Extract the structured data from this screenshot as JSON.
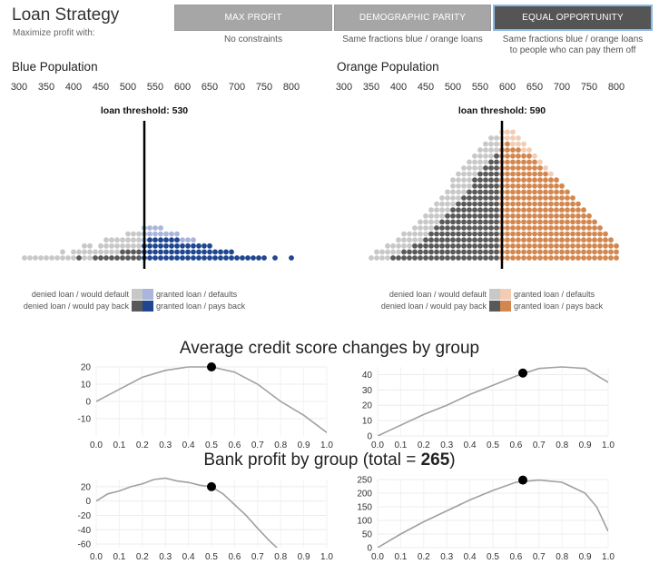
{
  "header": {
    "title": "Loan Strategy",
    "subtitle": "Maximize profit with:"
  },
  "strategies": [
    {
      "label": "MAX PROFIT",
      "description": "No constraints",
      "active": false
    },
    {
      "label": "DEMOGRAPHIC PARITY",
      "description": "Same fractions blue / orange loans",
      "active": false
    },
    {
      "label": "EQUAL OPPORTUNITY",
      "description": "Same fractions blue / orange loans\nto people who can pay them off",
      "active": true
    }
  ],
  "colors": {
    "blue_granted": "#1f4690",
    "blue_granted_default": "#a9b6da",
    "orange_granted": "#d3874e",
    "orange_granted_default": "#f2cdb3",
    "denied_default": "#c8c8c8",
    "denied_payback": "#595959",
    "line": "#a0a0a0"
  },
  "populations": [
    {
      "name": "Blue Population",
      "threshold_label": "loan threshold: 530",
      "threshold": 530,
      "score_ticks": [
        "300",
        "350",
        "400",
        "450",
        "500",
        "550",
        "600",
        "650",
        "700",
        "750",
        "800"
      ],
      "legend": {
        "denied_default": "denied loan / would default",
        "denied_payback": "denied loan / would pay back",
        "granted_default": "granted loan / defaults",
        "granted_payback": "granted loan / pays back"
      },
      "distribution": {
        "scores": [
          310,
          320,
          330,
          340,
          350,
          360,
          370,
          380,
          390,
          400,
          410,
          420,
          430,
          440,
          450,
          460,
          470,
          480,
          490,
          500,
          510,
          520,
          530,
          540,
          550,
          560,
          570,
          580,
          590,
          600,
          610,
          620,
          630,
          640,
          650,
          660,
          670,
          680,
          690,
          700,
          710,
          720,
          730,
          740,
          750,
          760,
          770,
          780,
          790,
          800
        ],
        "total": [
          1,
          1,
          1,
          1,
          1,
          1,
          1,
          2,
          1,
          2,
          2,
          3,
          3,
          2,
          3,
          4,
          4,
          4,
          4,
          5,
          5,
          5,
          6,
          6,
          6,
          6,
          5,
          5,
          5,
          4,
          4,
          4,
          3,
          3,
          3,
          2,
          2,
          2,
          2,
          1,
          1,
          1,
          1,
          1,
          1,
          0,
          1,
          0,
          0,
          1
        ],
        "would_pay_back": [
          0,
          0,
          0,
          0,
          0,
          0,
          0,
          0,
          0,
          0,
          1,
          0,
          0,
          1,
          1,
          1,
          1,
          1,
          2,
          2,
          2,
          2,
          3,
          4,
          4,
          4,
          4,
          4,
          4,
          3,
          3,
          3,
          3,
          3,
          3,
          2,
          2,
          2,
          2,
          1,
          1,
          1,
          1,
          1,
          1,
          0,
          1,
          0,
          0,
          1
        ]
      }
    },
    {
      "name": "Orange Population",
      "threshold_label": "loan threshold: 590",
      "threshold": 590,
      "score_ticks": [
        "300",
        "350",
        "400",
        "450",
        "500",
        "550",
        "600",
        "650",
        "700",
        "750",
        "800"
      ],
      "legend": {
        "denied_default": "denied loan / would default",
        "denied_payback": "denied loan / would pay back",
        "granted_default": "granted loan / defaults",
        "granted_payback": "granted loan / pays back"
      },
      "distribution": {
        "scores": [
          350,
          360,
          370,
          380,
          390,
          400,
          410,
          420,
          430,
          440,
          450,
          460,
          470,
          480,
          490,
          500,
          510,
          520,
          530,
          540,
          550,
          560,
          570,
          580,
          590,
          600,
          610,
          620,
          630,
          640,
          650,
          660,
          670,
          680,
          690,
          700,
          710,
          720,
          730,
          740,
          750,
          760,
          770,
          780,
          790,
          800
        ],
        "total": [
          1,
          2,
          2,
          3,
          3,
          4,
          5,
          5,
          6,
          7,
          8,
          9,
          10,
          11,
          12,
          14,
          15,
          16,
          17,
          18,
          19,
          20,
          21,
          21,
          22,
          22,
          22,
          21,
          20,
          19,
          18,
          17,
          16,
          15,
          14,
          13,
          12,
          11,
          10,
          9,
          8,
          7,
          6,
          5,
          4,
          3
        ],
        "would_pay_back": [
          0,
          0,
          0,
          0,
          1,
          1,
          2,
          2,
          3,
          3,
          4,
          5,
          6,
          7,
          8,
          9,
          10,
          11,
          12,
          14,
          15,
          16,
          17,
          18,
          19,
          20,
          19,
          19,
          18,
          18,
          17,
          16,
          15,
          14,
          14,
          13,
          12,
          11,
          10,
          9,
          8,
          7,
          6,
          5,
          4,
          3
        ]
      }
    }
  ],
  "credit_section_title": "Average credit score changes by group",
  "profit_section": {
    "prefix": "Bank profit by group (total = ",
    "total": "265",
    "suffix": ")"
  },
  "chart_data": [
    {
      "type": "line",
      "title": "",
      "group": "blue",
      "x": [
        0.0,
        0.1,
        0.2,
        0.3,
        0.4,
        0.5,
        0.6,
        0.7,
        0.8,
        0.9,
        1.0
      ],
      "y": [
        0,
        7,
        14,
        18,
        20,
        20,
        17,
        10,
        0,
        -8,
        -18
      ],
      "xlim": [
        0,
        1
      ],
      "ylim": [
        -20,
        20
      ],
      "xticks": [
        "0.0",
        "0.1",
        "0.2",
        "0.3",
        "0.4",
        "0.5",
        "0.6",
        "0.7",
        "0.8",
        "0.9",
        "1.0"
      ],
      "yticks": [
        "20",
        "10",
        "0",
        "-10"
      ],
      "ytick_values": [
        20,
        10,
        0,
        -10
      ],
      "marker": {
        "x": 0.5,
        "y": 20
      }
    },
    {
      "type": "line",
      "title": "",
      "group": "orange",
      "x": [
        0.0,
        0.1,
        0.2,
        0.3,
        0.4,
        0.5,
        0.6,
        0.7,
        0.8,
        0.9,
        1.0
      ],
      "y": [
        0,
        7,
        14,
        20,
        27,
        33,
        39,
        44,
        45,
        44,
        35
      ],
      "xlim": [
        0,
        1
      ],
      "ylim": [
        0,
        45
      ],
      "xticks": [
        "0.0",
        "0.1",
        "0.2",
        "0.3",
        "0.4",
        "0.5",
        "0.6",
        "0.7",
        "0.8",
        "0.9",
        "1.0"
      ],
      "yticks": [
        "40",
        "30",
        "20",
        "10",
        "0"
      ],
      "ytick_values": [
        40,
        30,
        20,
        10,
        0
      ],
      "marker": {
        "x": 0.63,
        "y": 41
      }
    },
    {
      "type": "line",
      "title": "",
      "group": "blue",
      "x": [
        0.0,
        0.05,
        0.1,
        0.15,
        0.2,
        0.25,
        0.3,
        0.35,
        0.4,
        0.45,
        0.5,
        0.55,
        0.6,
        0.65,
        0.7,
        0.75,
        0.8
      ],
      "y": [
        0,
        10,
        14,
        20,
        24,
        30,
        32,
        28,
        26,
        22,
        20,
        10,
        -5,
        -20,
        -38,
        -55,
        -70
      ],
      "xlim": [
        0,
        1
      ],
      "ylim": [
        -65,
        30
      ],
      "xticks": [
        "0.0",
        "0.1",
        "0.2",
        "0.3",
        "0.4",
        "0.5",
        "0.6",
        "0.7",
        "0.8",
        "0.9",
        "1.0"
      ],
      "yticks": [
        "20",
        "0",
        "-20",
        "-40",
        "-60"
      ],
      "ytick_values": [
        20,
        0,
        -20,
        -40,
        -60
      ],
      "marker": {
        "x": 0.5,
        "y": 20
      }
    },
    {
      "type": "line",
      "title": "",
      "group": "orange",
      "x": [
        0.0,
        0.1,
        0.2,
        0.3,
        0.4,
        0.5,
        0.6,
        0.7,
        0.8,
        0.9,
        0.95,
        1.0
      ],
      "y": [
        0,
        50,
        95,
        135,
        175,
        210,
        240,
        248,
        240,
        200,
        150,
        60
      ],
      "xlim": [
        0,
        1
      ],
      "ylim": [
        0,
        250
      ],
      "xticks": [
        "0.0",
        "0.1",
        "0.2",
        "0.3",
        "0.4",
        "0.5",
        "0.6",
        "0.7",
        "0.8",
        "0.9",
        "1.0"
      ],
      "yticks": [
        "250",
        "200",
        "150",
        "100",
        "50",
        "0"
      ],
      "ytick_values": [
        250,
        200,
        150,
        100,
        50,
        0
      ],
      "marker": {
        "x": 0.63,
        "y": 248
      }
    }
  ]
}
